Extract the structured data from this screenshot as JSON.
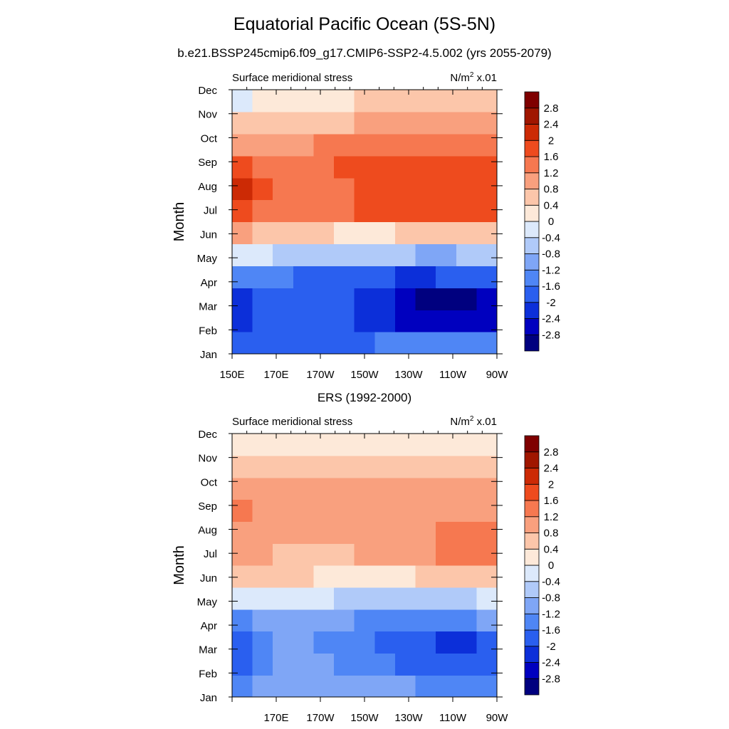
{
  "title": "Equatorial Pacific Ocean (5S-5N)",
  "subtitle": "b.e21.BSSP245cmip6.f09_g17.CMIP6-SSP2-4.5.002 (yrs 2055-2079)",
  "colorbar": {
    "colors": [
      "#00007f",
      "#0000bf",
      "#0c2fd9",
      "#2a5fef",
      "#4f86f5",
      "#7fa6f6",
      "#b0caf9",
      "#dce9fb",
      "#fde9d9",
      "#fcc6aa",
      "#f9a07e",
      "#f67850",
      "#ee4b1e",
      "#cc2a05",
      "#a01600",
      "#7f0000"
    ],
    "labels": [
      "-2.8",
      "-2.4",
      "-2",
      "-1.6",
      "-1.2",
      "-0.8",
      "-0.4",
      "0",
      "0.4",
      "0.8",
      "1.2",
      "1.6",
      "2",
      "2.4",
      "2.8"
    ]
  },
  "chart_data": [
    {
      "type": "heatmap",
      "title": "",
      "left_label": "Surface meridional stress",
      "right_label": "N/m",
      "right_label_sup": "2",
      "right_label_suffix": " x.01",
      "ylabel": "Month",
      "xlabel": "",
      "x_tick_labels": [
        "150E",
        "170E",
        "170W",
        "150W",
        "130W",
        "110W",
        "90W"
      ],
      "y_tick_labels": [
        "Jan",
        "Feb",
        "Mar",
        "Apr",
        "May",
        "Jun",
        "Jul",
        "Aug",
        "Sep",
        "Oct",
        "Nov",
        "Dec"
      ],
      "x": [
        150,
        160,
        170,
        180,
        190,
        200,
        210,
        220,
        230,
        240,
        250,
        260,
        270
      ],
      "y": [
        "Jan",
        "Feb",
        "Mar",
        "Apr",
        "May",
        "Jun",
        "Jul",
        "Aug",
        "Sep",
        "Oct",
        "Nov",
        "Dec"
      ],
      "z": [
        [
          -2.0,
          -1.9,
          -1.8,
          -1.8,
          -1.8,
          -1.7,
          -1.7,
          -1.6,
          -1.6,
          -1.6,
          -1.5,
          -1.5,
          -1.4
        ],
        [
          -2.1,
          -2.0,
          -1.9,
          -1.8,
          -1.8,
          -1.9,
          -2.1,
          -2.3,
          -2.5,
          -2.7,
          -2.8,
          -2.8,
          -2.5
        ],
        [
          -2.1,
          -2.0,
          -1.9,
          -1.9,
          -1.9,
          -2.0,
          -2.2,
          -2.4,
          -2.7,
          -3.0,
          -3.0,
          -3.0,
          -2.6
        ],
        [
          -1.4,
          -1.5,
          -1.6,
          -1.7,
          -1.7,
          -1.8,
          -1.9,
          -2.0,
          -2.1,
          -2.1,
          -2.0,
          -1.9,
          -1.7
        ],
        [
          -0.3,
          -0.4,
          -0.5,
          -0.6,
          -0.6,
          -0.7,
          -0.8,
          -0.8,
          -0.8,
          -0.9,
          -0.9,
          -0.8,
          -0.7
        ],
        [
          0.8,
          0.6,
          0.5,
          0.5,
          0.4,
          0.3,
          0.3,
          0.3,
          0.4,
          0.4,
          0.5,
          0.5,
          0.6
        ],
        [
          1.9,
          1.5,
          1.2,
          1.2,
          1.3,
          1.4,
          1.6,
          1.6,
          1.8,
          1.8,
          1.9,
          1.9,
          1.7
        ],
        [
          2.1,
          1.7,
          1.4,
          1.3,
          1.4,
          1.5,
          1.7,
          1.8,
          1.9,
          1.9,
          1.9,
          1.9,
          1.8
        ],
        [
          1.7,
          1.4,
          1.3,
          1.4,
          1.5,
          1.6,
          1.6,
          1.7,
          1.8,
          1.8,
          1.8,
          1.8,
          1.6
        ],
        [
          1.1,
          1.0,
          1.1,
          1.1,
          1.2,
          1.2,
          1.2,
          1.3,
          1.3,
          1.3,
          1.3,
          1.3,
          1.2
        ],
        [
          0.5,
          0.6,
          0.7,
          0.7,
          0.7,
          0.7,
          0.8,
          0.8,
          0.9,
          0.9,
          0.9,
          0.9,
          0.8
        ],
        [
          -0.1,
          0.1,
          0.2,
          0.2,
          0.3,
          0.3,
          0.4,
          0.4,
          0.4,
          0.4,
          0.5,
          0.5,
          0.5
        ]
      ],
      "zlevels": [
        -2.8,
        -2.4,
        -2,
        -1.6,
        -1.2,
        -0.8,
        -0.4,
        0,
        0.4,
        0.8,
        1.2,
        1.6,
        2,
        2.4,
        2.8
      ]
    },
    {
      "type": "heatmap",
      "title": "ERS (1992-2000)",
      "left_label": "Surface meridional stress",
      "right_label": "N/m",
      "right_label_sup": "2",
      "right_label_suffix": " x.01",
      "ylabel": "Month",
      "xlabel": "",
      "x_tick_labels": [
        "170E",
        "170W",
        "150W",
        "130W",
        "110W",
        "90W"
      ],
      "y_tick_labels": [
        "Jan",
        "Feb",
        "Mar",
        "Apr",
        "May",
        "Jun",
        "Jul",
        "Aug",
        "Sep",
        "Oct",
        "Nov",
        "Dec"
      ],
      "x": [
        150,
        160,
        170,
        180,
        190,
        200,
        210,
        220,
        230,
        240,
        250,
        260,
        270
      ],
      "y": [
        "Jan",
        "Feb",
        "Mar",
        "Apr",
        "May",
        "Jun",
        "Jul",
        "Aug",
        "Sep",
        "Oct",
        "Nov",
        "Dec"
      ],
      "z": [
        [
          -1.3,
          -1.0,
          -0.9,
          -1.0,
          -1.0,
          -1.0,
          -1.1,
          -1.2,
          -1.2,
          -1.3,
          -1.4,
          -1.5,
          -1.4
        ],
        [
          -1.8,
          -1.3,
          -1.1,
          -1.1,
          -1.2,
          -1.3,
          -1.4,
          -1.6,
          -1.7,
          -1.8,
          -2.0,
          -2.0,
          -1.8
        ],
        [
          -1.9,
          -1.4,
          -1.1,
          -1.2,
          -1.3,
          -1.4,
          -1.6,
          -1.7,
          -1.8,
          -2.0,
          -2.2,
          -2.2,
          -2.0
        ],
        [
          -1.3,
          -1.1,
          -1.0,
          -1.0,
          -1.1,
          -1.2,
          -1.3,
          -1.3,
          -1.4,
          -1.4,
          -1.5,
          -1.4,
          -1.2
        ],
        [
          -0.3,
          -0.3,
          -0.3,
          -0.3,
          -0.4,
          -0.5,
          -0.5,
          -0.6,
          -0.6,
          -0.6,
          -0.6,
          -0.5,
          -0.4
        ],
        [
          0.6,
          0.5,
          0.4,
          0.4,
          0.3,
          0.3,
          0.3,
          0.3,
          0.3,
          0.4,
          0.5,
          0.5,
          0.5
        ],
        [
          1.0,
          0.8,
          0.7,
          0.7,
          0.7,
          0.7,
          0.8,
          0.8,
          0.9,
          1.0,
          1.2,
          1.3,
          1.2
        ],
        [
          1.1,
          0.9,
          0.8,
          0.8,
          0.9,
          0.9,
          0.9,
          0.9,
          1.0,
          1.1,
          1.2,
          1.3,
          1.2
        ],
        [
          1.3,
          1.0,
          0.9,
          0.9,
          1.0,
          1.0,
          1.0,
          1.0,
          1.0,
          1.0,
          1.1,
          1.1,
          1.0
        ],
        [
          1.0,
          0.9,
          0.8,
          0.9,
          0.9,
          0.9,
          0.9,
          0.9,
          0.9,
          0.9,
          0.9,
          0.9,
          0.8
        ],
        [
          0.4,
          0.4,
          0.4,
          0.5,
          0.5,
          0.5,
          0.5,
          0.5,
          0.6,
          0.6,
          0.6,
          0.6,
          0.5
        ],
        [
          0.2,
          0.2,
          0.1,
          0.1,
          0.1,
          0.0,
          0.1,
          0.2,
          0.2,
          0.3,
          0.3,
          0.3,
          0.3
        ]
      ],
      "zlevels": [
        -2.8,
        -2.4,
        -2,
        -1.6,
        -1.2,
        -0.8,
        -0.4,
        0,
        0.4,
        0.8,
        1.2,
        1.6,
        2,
        2.4,
        2.8
      ]
    }
  ]
}
